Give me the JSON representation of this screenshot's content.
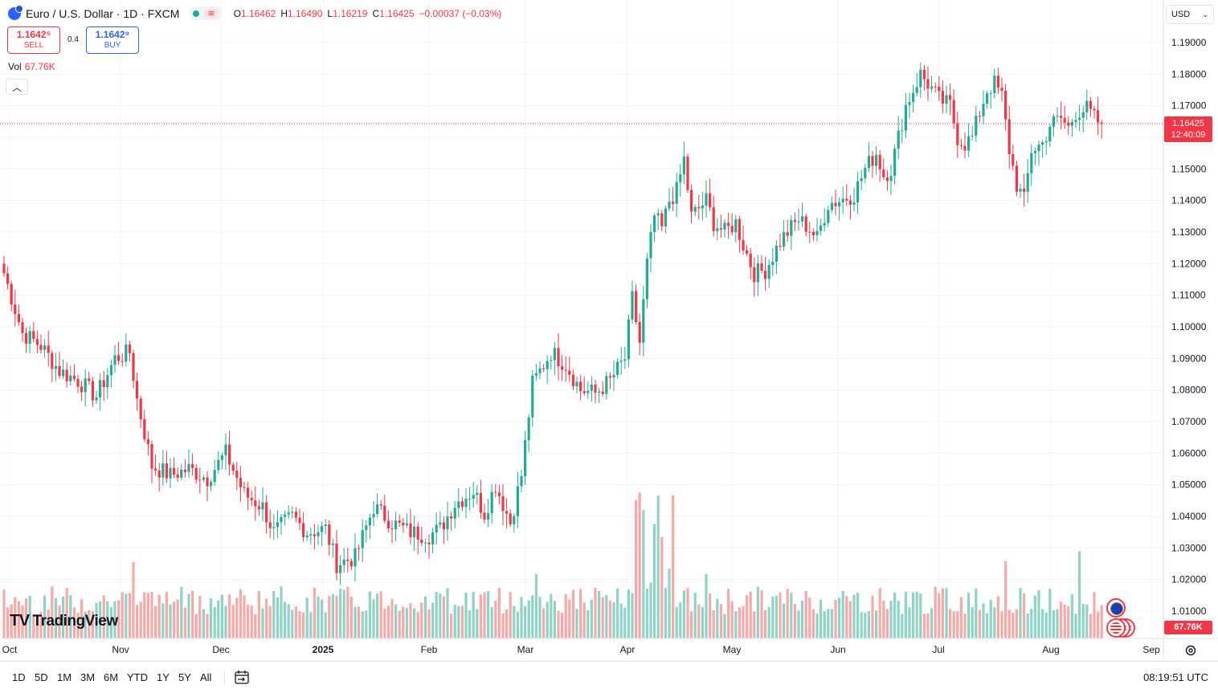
{
  "symbol": {
    "title": "Euro / U.S. Dollar · 1D · FXCM",
    "market_dot": "open-market-dot",
    "ohlc": [
      {
        "key": "O",
        "value": "1.16462"
      },
      {
        "key": "H",
        "value": "1.16490"
      },
      {
        "key": "L",
        "value": "1.16219"
      },
      {
        "key": "C",
        "value": "1.16425"
      },
      {
        "key": "",
        "value": "−0.00037 (−0.03%)"
      }
    ]
  },
  "trade": {
    "sell_price": "1.1642⁵",
    "sell_label": "SELL",
    "spread": "0.4",
    "buy_price": "1.1642⁹",
    "buy_label": "BUY"
  },
  "volume_legend": {
    "label": "Vol",
    "value": "67.76K"
  },
  "currency": "USD",
  "last_price": {
    "price": "1.16425",
    "countdown": "12:40:09"
  },
  "volume_tag": "67.76K",
  "brand": "TradingView",
  "time_axis": [
    {
      "label": "Oct",
      "bold": false
    },
    {
      "label": "Nov",
      "bold": false
    },
    {
      "label": "Dec",
      "bold": false
    },
    {
      "label": "2025",
      "bold": true
    },
    {
      "label": "Feb",
      "bold": false
    },
    {
      "label": "Mar",
      "bold": false
    },
    {
      "label": "Apr",
      "bold": false
    },
    {
      "label": "May",
      "bold": false
    },
    {
      "label": "Jun",
      "bold": false
    },
    {
      "label": "Jul",
      "bold": false
    },
    {
      "label": "Aug",
      "bold": false
    },
    {
      "label": "Sep",
      "bold": false
    }
  ],
  "range_buttons": [
    "1D",
    "5D",
    "1M",
    "3M",
    "6M",
    "YTD",
    "1Y",
    "5Y",
    "All"
  ],
  "clock": "08:19:51 UTC",
  "colors": {
    "up": "#22ab94",
    "down": "#f23645",
    "up_vol": "#8fd3c7",
    "down_vol": "#f7a9a7",
    "grid": "#f0f3fa"
  },
  "chart_data": {
    "type": "candlestick",
    "title": "Euro / U.S. Dollar · 1D · FXCM",
    "xlabel": "",
    "ylabel": "",
    "ylim": [
      1.0,
      1.19
    ],
    "y_ticks": [
      "1.19000",
      "1.18000",
      "1.17000",
      "1.16000",
      "1.15000",
      "1.14000",
      "1.13000",
      "1.12000",
      "1.11000",
      "1.10000",
      "1.09000",
      "1.08000",
      "1.07000",
      "1.06000",
      "1.05000",
      "1.04000",
      "1.03000",
      "1.02000",
      "1.01000"
    ],
    "last_close": 1.16425,
    "anchors": [
      [
        0,
        1.117
      ],
      [
        5,
        1.098
      ],
      [
        10,
        1.094
      ],
      [
        15,
        1.086
      ],
      [
        20,
        1.083
      ],
      [
        25,
        1.078
      ],
      [
        30,
        1.09
      ],
      [
        34,
        1.092
      ],
      [
        36,
        1.077
      ],
      [
        40,
        1.056
      ],
      [
        45,
        1.053
      ],
      [
        50,
        1.055
      ],
      [
        55,
        1.052
      ],
      [
        60,
        1.06
      ],
      [
        65,
        1.047
      ],
      [
        70,
        1.043
      ],
      [
        73,
        1.035
      ],
      [
        78,
        1.04
      ],
      [
        82,
        1.035
      ],
      [
        87,
        1.036
      ],
      [
        90,
        1.025
      ],
      [
        95,
        1.027
      ],
      [
        100,
        1.043
      ],
      [
        105,
        1.038
      ],
      [
        110,
        1.035
      ],
      [
        115,
        1.034
      ],
      [
        118,
        1.036
      ],
      [
        122,
        1.044
      ],
      [
        127,
        1.048
      ],
      [
        130,
        1.041
      ],
      [
        133,
        1.05
      ],
      [
        137,
        1.038
      ],
      [
        140,
        1.053
      ],
      [
        143,
        1.082
      ],
      [
        148,
        1.092
      ],
      [
        152,
        1.088
      ],
      [
        156,
        1.08
      ],
      [
        160,
        1.079
      ],
      [
        164,
        1.083
      ],
      [
        168,
        1.09
      ],
      [
        170,
        1.109
      ],
      [
        172,
        1.095
      ],
      [
        174,
        1.12
      ],
      [
        176,
        1.135
      ],
      [
        178,
        1.131
      ],
      [
        180,
        1.14
      ],
      [
        182,
        1.143
      ],
      [
        184,
        1.153
      ],
      [
        186,
        1.135
      ],
      [
        190,
        1.14
      ],
      [
        192,
        1.133
      ],
      [
        195,
        1.13
      ],
      [
        198,
        1.133
      ],
      [
        200,
        1.126
      ],
      [
        203,
        1.117
      ],
      [
        206,
        1.118
      ],
      [
        210,
        1.127
      ],
      [
        212,
        1.13
      ],
      [
        215,
        1.134
      ],
      [
        218,
        1.131
      ],
      [
        220,
        1.128
      ],
      [
        223,
        1.139
      ],
      [
        226,
        1.14
      ],
      [
        230,
        1.142
      ],
      [
        233,
        1.15
      ],
      [
        236,
        1.155
      ],
      [
        238,
        1.148
      ],
      [
        240,
        1.15
      ],
      [
        242,
        1.16
      ],
      [
        244,
        1.17
      ],
      [
        246,
        1.175
      ],
      [
        248,
        1.18
      ],
      [
        250,
        1.177
      ],
      [
        253,
        1.172
      ],
      [
        256,
        1.17
      ],
      [
        258,
        1.16
      ],
      [
        260,
        1.158
      ],
      [
        262,
        1.16
      ],
      [
        264,
        1.168
      ],
      [
        266,
        1.175
      ],
      [
        268,
        1.177
      ],
      [
        270,
        1.173
      ],
      [
        272,
        1.156
      ],
      [
        274,
        1.145
      ],
      [
        276,
        1.14
      ],
      [
        278,
        1.156
      ],
      [
        281,
        1.158
      ],
      [
        283,
        1.164
      ],
      [
        286,
        1.166
      ],
      [
        288,
        1.163
      ],
      [
        290,
        1.168
      ],
      [
        293,
        1.169
      ],
      [
        295,
        1.166
      ],
      [
        297,
        1.164
      ]
    ],
    "volume_scale_max": 145
  }
}
